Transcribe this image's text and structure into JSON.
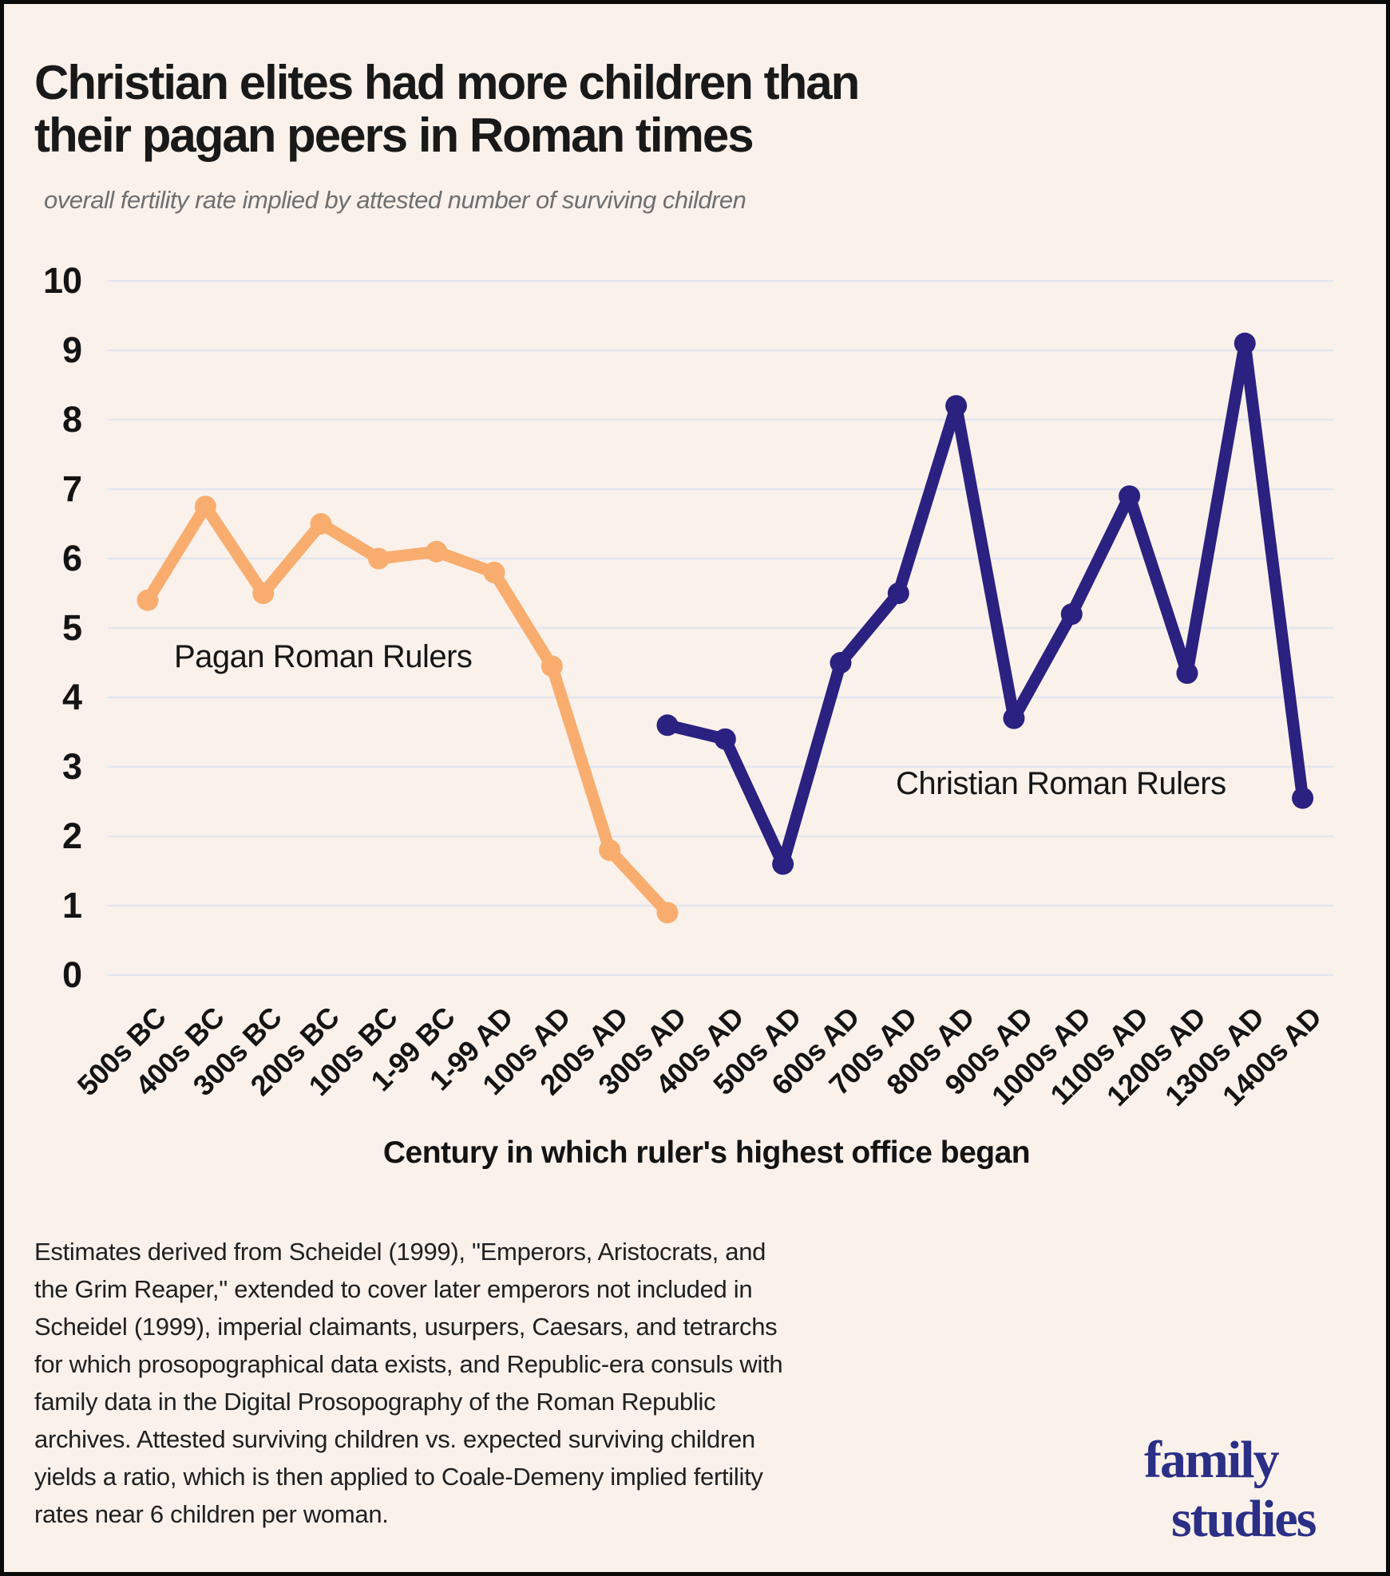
{
  "page": {
    "title_lines": [
      "Christian elites had more children than",
      "their pagan peers in Roman times"
    ],
    "subtitle": "overall fertility rate implied by attested number of surviving children",
    "footer_lines": [
      "Estimates derived from Scheidel (1999), \"Emperors, Aristocrats, and",
      "the Grim Reaper,\" extended to cover later emperors not included in",
      "Scheidel (1999), imperial claimants, usurpers, Caesars, and tetrarchs",
      "for which prosopographical data exists, and Republic-era consuls with",
      "family data in the Digital Prosopography of the Roman Republic",
      "archives. Attested surviving children vs. expected surviving children",
      "yields a ratio, which is then applied to Coale-Demeny implied fertility",
      "rates near 6 children per woman."
    ],
    "logo": {
      "line1": "family",
      "line2": "studies",
      "color": "#2B2F85"
    },
    "background_color": "#FAF1EB",
    "border_color": "#0A0A0A"
  },
  "chart_data": {
    "type": "line",
    "title": "Christian elites had more children than their pagan peers in Roman times",
    "subtitle": "overall fertility rate implied by attested number of surviving children",
    "xlabel": "Century in which ruler's highest office began",
    "ylabel": "",
    "ylim": [
      0,
      10
    ],
    "yticks": [
      0,
      1,
      2,
      3,
      4,
      5,
      6,
      7,
      8,
      9,
      10
    ],
    "grid": true,
    "gridline_color": "#E3E6EF",
    "legend_position": "inline-annotations",
    "categories": [
      "500s BC",
      "400s BC",
      "300s BC",
      "200s BC",
      "100s BC",
      "1-99 BC",
      "1-99 AD",
      "100s AD",
      "200s AD",
      "300s AD",
      "400s AD",
      "500s AD",
      "600s AD",
      "700s AD",
      "800s AD",
      "900s AD",
      "1000s AD",
      "1100s AD",
      "1200s AD",
      "1300s AD",
      "1400s AD"
    ],
    "series": [
      {
        "name": "Pagan Roman Rulers",
        "color": "#F8AD6E",
        "start_index": 0,
        "values": [
          5.4,
          6.75,
          5.5,
          6.5,
          6.0,
          6.1,
          5.8,
          4.45,
          1.8,
          0.9
        ]
      },
      {
        "name": "Christian Roman Rulers",
        "color": "#2A2180",
        "start_index": 9,
        "values": [
          3.6,
          3.4,
          1.6,
          4.5,
          5.5,
          8.2,
          3.7,
          5.2,
          6.9,
          4.35,
          9.1,
          2.55
        ]
      }
    ]
  }
}
